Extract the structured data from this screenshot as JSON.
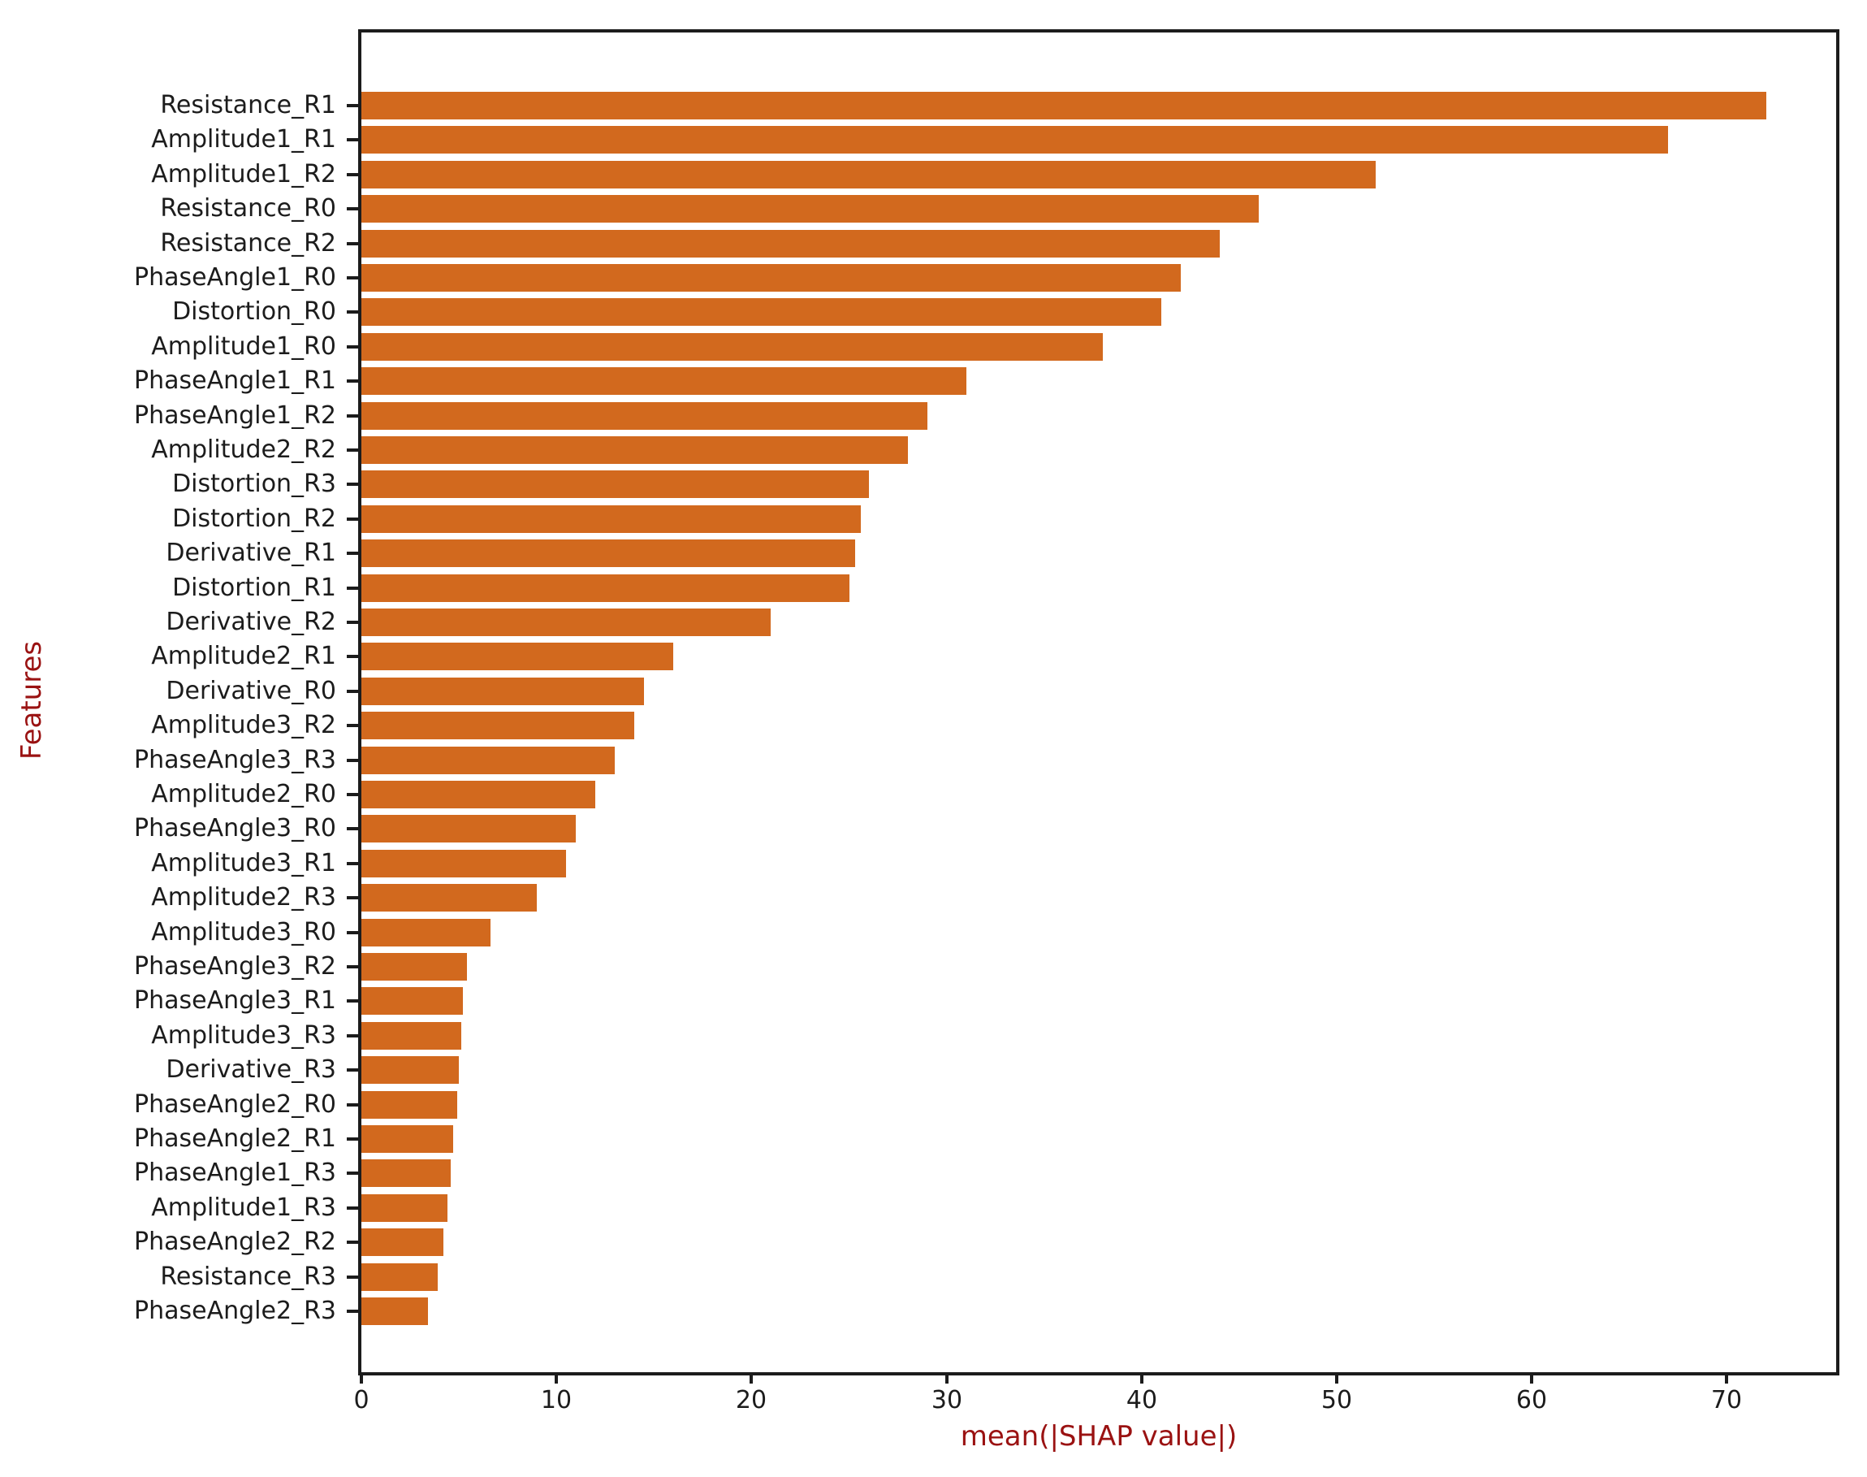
{
  "figure": {
    "background": "#ffffff"
  },
  "chart_data": {
    "type": "bar",
    "orientation": "horizontal",
    "title": "",
    "xlabel": "mean(|SHAP value|)",
    "ylabel": "Features",
    "xlim": [
      0,
      75.6
    ],
    "xticks": [
      0,
      10,
      20,
      30,
      40,
      50,
      60,
      70
    ],
    "grid": false,
    "legend_position": "none",
    "bar_color": "#d2691e",
    "axis_label_color": "#9a1212",
    "tick_label_color": "#1c1c1c",
    "spine_color": "#1c1c1c",
    "categories": [
      "Resistance_R1",
      "Amplitude1_R1",
      "Amplitude1_R2",
      "Resistance_R0",
      "Resistance_R2",
      "PhaseAngle1_R0",
      "Distortion_R0",
      "Amplitude1_R0",
      "PhaseAngle1_R1",
      "PhaseAngle1_R2",
      "Amplitude2_R2",
      "Distortion_R3",
      "Distortion_R2",
      "Derivative_R1",
      "Distortion_R1",
      "Derivative_R2",
      "Amplitude2_R1",
      "Derivative_R0",
      "Amplitude3_R2",
      "PhaseAngle3_R3",
      "Amplitude2_R0",
      "PhaseAngle3_R0",
      "Amplitude3_R1",
      "Amplitude2_R3",
      "Amplitude3_R0",
      "PhaseAngle3_R2",
      "PhaseAngle3_R1",
      "Amplitude3_R3",
      "Derivative_R3",
      "PhaseAngle2_R0",
      "PhaseAngle2_R1",
      "PhaseAngle1_R3",
      "Amplitude1_R3",
      "PhaseAngle2_R2",
      "Resistance_R3",
      "PhaseAngle2_R3"
    ],
    "values": [
      72,
      67,
      52,
      46,
      44,
      42,
      41,
      38,
      31,
      29,
      28,
      26,
      25.6,
      25.3,
      25,
      21,
      16,
      14.5,
      14,
      13,
      12,
      11,
      10.5,
      9,
      6.6,
      5.4,
      5.2,
      5.1,
      5,
      4.9,
      4.7,
      4.6,
      4.4,
      4.2,
      3.9,
      3.4
    ]
  }
}
